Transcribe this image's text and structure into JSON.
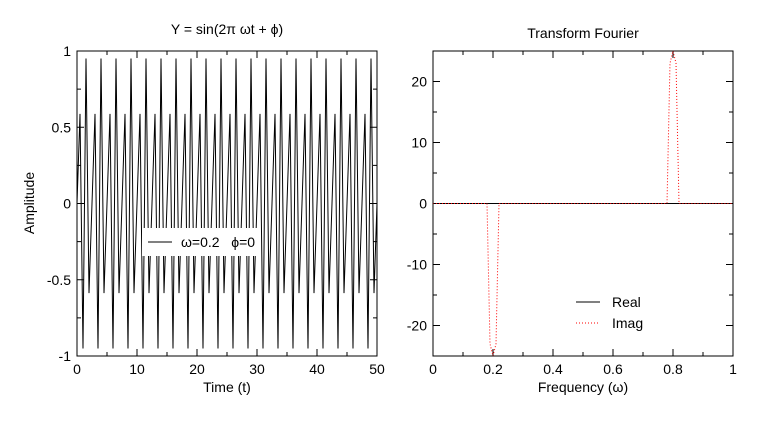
{
  "chart_data": [
    {
      "type": "line",
      "title": "Y = sin(2π ωt + ϕ)",
      "xlabel": "Time (t)",
      "ylabel": "Amplitude",
      "xlim": [
        0,
        50
      ],
      "ylim": [
        -1,
        1
      ],
      "xticks": [
        "0",
        "10",
        "20",
        "30",
        "40",
        "50"
      ],
      "yticks": [
        "-1",
        "-0.5",
        "0",
        "0.5",
        "1"
      ],
      "grid": false,
      "legend_position": "center-left",
      "series": [
        {
          "name": "ω=0.2   ϕ=0",
          "color": "#000000",
          "style": "solid",
          "function": "sin(2*pi*0.8*t) sampled every 0.5 over [0, 50]",
          "amplitude": 1,
          "apparent_frequency": 0.2,
          "sample_step": 0.5
        }
      ]
    },
    {
      "type": "line",
      "title": "Transform Fourier",
      "xlabel": "Frequency (ω)",
      "ylabel": "",
      "xlim": [
        0,
        1
      ],
      "ylim": [
        -25,
        25
      ],
      "xticks": [
        "0",
        "0.2",
        "0.4",
        "0.6",
        "0.8",
        "1"
      ],
      "yticks": [
        "-20",
        "-10",
        "0",
        "10",
        "20"
      ],
      "grid": false,
      "legend_position": "bottom-right",
      "series": [
        {
          "name": "Real",
          "color": "#000000",
          "style": "solid",
          "x": [
            0,
            1
          ],
          "y": [
            0,
            0
          ]
        },
        {
          "name": "Imag",
          "color": "#ff0000",
          "style": "dotted",
          "x": [
            0,
            0.18,
            0.19,
            0.2,
            0.21,
            0.22,
            0.78,
            0.79,
            0.8,
            0.81,
            0.82,
            1
          ],
          "y": [
            0,
            0,
            -23,
            -25,
            -23,
            0,
            0,
            23,
            25,
            23,
            0,
            0
          ]
        }
      ]
    }
  ]
}
